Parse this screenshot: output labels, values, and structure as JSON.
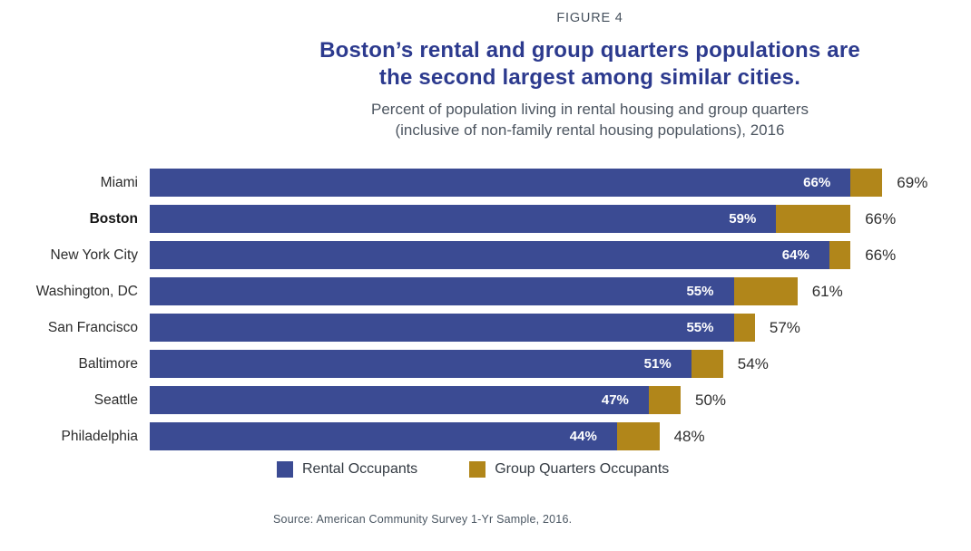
{
  "header": {
    "figure_label": "FIGURE 4",
    "title_line1": "Boston’s rental and group quarters populations are",
    "title_line2": "the second largest among similar cities.",
    "subtitle_line1": "Percent of population living in rental housing and group quarters",
    "subtitle_line2": "(inclusive of non-family rental housing populations), 2016"
  },
  "chart_data": {
    "type": "bar",
    "orientation": "horizontal",
    "stacked": true,
    "title": "Boston’s rental and group quarters populations are the second largest among similar cities.",
    "subtitle": "Percent of population living in rental housing and group quarters (inclusive of non-family rental housing populations), 2016",
    "categories": [
      "Miami",
      "Boston",
      "New York City",
      "Washington, DC",
      "San Francisco",
      "Baltimore",
      "Seattle",
      "Philadelphia"
    ],
    "emphasized_category": "Boston",
    "series": [
      {
        "name": "Rental Occupants",
        "color": "#3b4b93",
        "values": [
          66,
          59,
          64,
          55,
          55,
          51,
          47,
          44
        ]
      },
      {
        "name": "Group Quarters Occupants",
        "color": "#b1861a",
        "values": [
          3,
          7,
          2,
          6,
          2,
          3,
          3,
          4
        ]
      }
    ],
    "totals": [
      69,
      66,
      66,
      61,
      57,
      54,
      50,
      48
    ],
    "inner_labels": [
      "66%",
      "59%",
      "64%",
      "55%",
      "55%",
      "51%",
      "47%",
      "44%"
    ],
    "outer_labels": [
      "69%",
      "66%",
      "66%",
      "61%",
      "57%",
      "54%",
      "50%",
      "48%"
    ],
    "xlim": [
      0,
      69
    ],
    "grid": false,
    "legend_position": "bottom"
  },
  "legend": {
    "items": [
      {
        "label": "Rental Occupants",
        "color": "#3b4b93"
      },
      {
        "label": "Group Quarters Occupants",
        "color": "#b1861a"
      }
    ]
  },
  "source": "Source: American Community Survey 1-Yr Sample, 2016.",
  "colors": {
    "title": "#2c3a8e",
    "subtitle": "#4c5560",
    "rental_bar": "#3b4b93",
    "group_quarters_bar": "#b1861a",
    "inner_value_text": "#ffffff",
    "outer_value_text": "#2e2e2e"
  }
}
